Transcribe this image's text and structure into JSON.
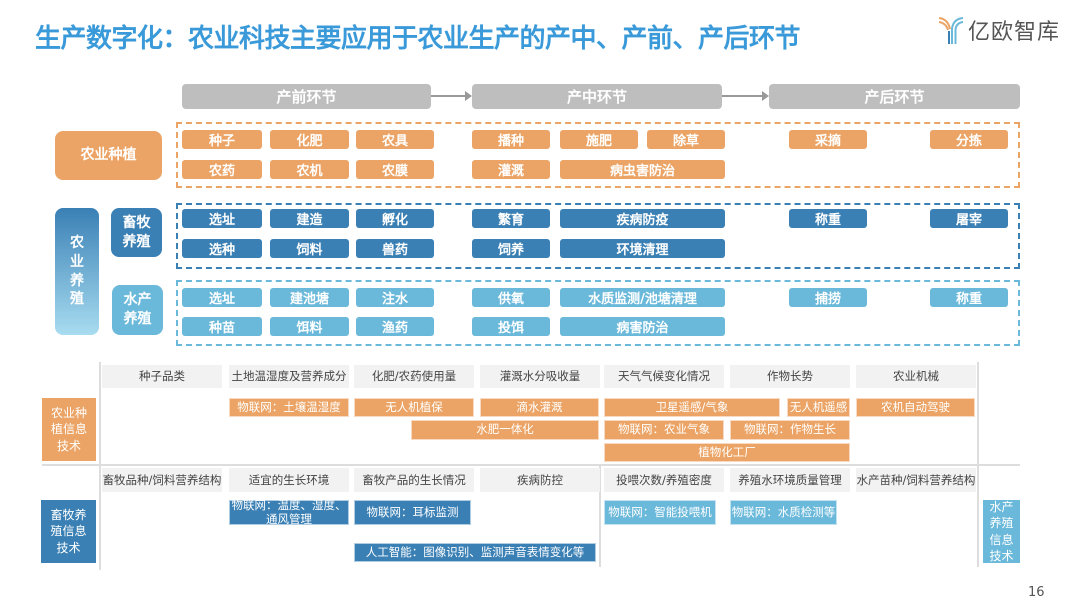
{
  "title": "生产数字化：农业科技主要应用于农业生产的产中、产前、产后环节",
  "logo": {
    "text": "亿欧智库",
    "icon": "yiou-logo-icon"
  },
  "colors": {
    "title": "#3A9AD9",
    "planting": "#EBA465",
    "livestock": "#3B80B5",
    "aquaculture": "#6AB8DA",
    "stage": "#BFBEBE"
  },
  "stages": [
    "产前环节",
    "产中环节",
    "产后环节"
  ],
  "categories": {
    "planting": "农业种植",
    "breeding": "农业养殖",
    "livestock": "畜牧养殖",
    "aquaculture": "水产养殖"
  },
  "planting_items": [
    "种子",
    "化肥",
    "农具",
    "播种",
    "施肥",
    "除草",
    "采摘",
    "分拣",
    "农药",
    "农机",
    "农膜",
    "灌溉",
    "病虫害防治"
  ],
  "livestock_items": [
    "选址",
    "建造",
    "孵化",
    "繁育",
    "疾病防疫",
    "称重",
    "屠宰",
    "选种",
    "饲料",
    "兽药",
    "饲养",
    "环境清理"
  ],
  "aquaculture_items": [
    "选址",
    "建池塘",
    "注水",
    "供氧",
    "水质监测/池塘清理",
    "捕捞",
    "称重",
    "种苗",
    "饵料",
    "渔药",
    "投饵",
    "病害防治"
  ],
  "planting_info": {
    "label": "农业种植信息技术",
    "headers": [
      "种子品类",
      "土地温湿度及营养成分",
      "化肥/农药使用量",
      "灌溉水分吸收量",
      "天气气候变化情况",
      "作物长势",
      "农业机械"
    ],
    "techs": [
      "物联网：土壤温湿度",
      "无人机植保",
      "滴水灌溉",
      "卫星遥感/气象",
      "无人机遥感",
      "农机自动驾驶",
      "水肥一体化",
      "物联网：农业气象",
      "物联网：作物生长",
      "植物化工厂"
    ]
  },
  "breeding_info": {
    "livestock_label": "畜牧养殖信息技术",
    "aquaculture_label": "水产养殖信息技术",
    "headers": [
      "畜牧品种/饲料营养结构",
      "适宜的生长环境",
      "畜牧产品的生长情况",
      "疾病防控",
      "投喂次数/养殖密度",
      "养殖水环境质量管理",
      "水产苗种/饲料营养结构"
    ],
    "techs": [
      "物联网：温度、湿度、通风管理",
      "物联网：耳标监测",
      "人工智能：图像识别、监测声音表情变化等",
      "物联网：智能投喂机",
      "物联网：水质检测等"
    ]
  },
  "page_number": "16"
}
